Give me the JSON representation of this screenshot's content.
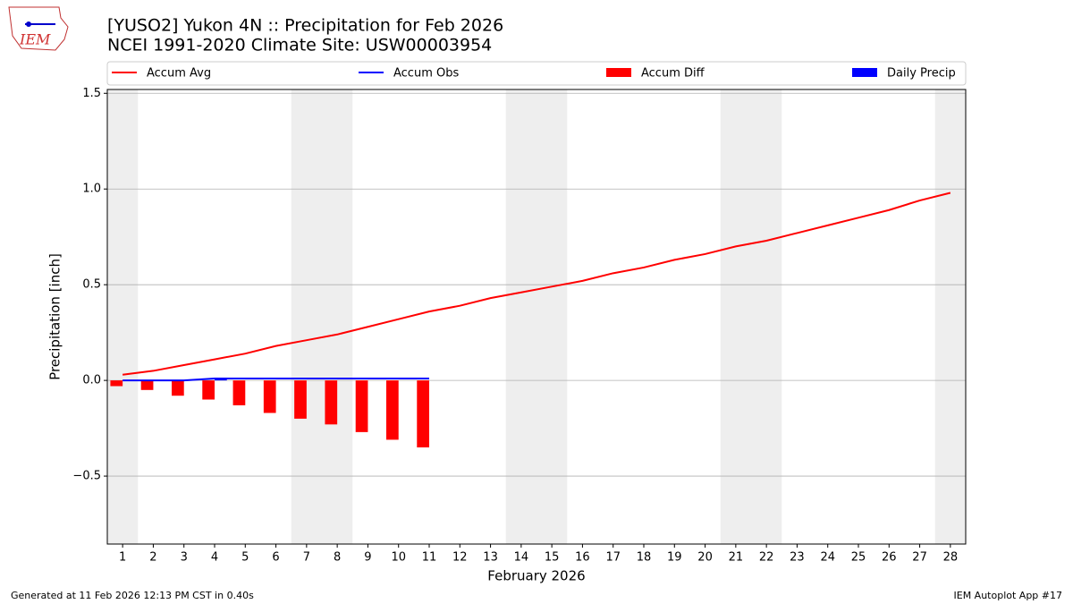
{
  "logo": "IEM",
  "footer": {
    "left": "Generated at 11 Feb 2026 12:13 PM CST in 0.40s",
    "right": "IEM Autoplot App #17"
  },
  "chart_data": {
    "type": "bar-line",
    "title": "[YUSO2] Yukon 4N :: Precipitation for Feb 2026",
    "subtitle": "NCEI 1991-2020 Climate Site: USW00003954",
    "x_label": "February 2026",
    "y_label": "Precipitation [inch]",
    "x": [
      1,
      2,
      3,
      4,
      5,
      6,
      7,
      8,
      9,
      10,
      11,
      12,
      13,
      14,
      15,
      16,
      17,
      18,
      19,
      20,
      21,
      22,
      23,
      24,
      25,
      26,
      27,
      28
    ],
    "series": [
      {
        "name": "Accum Avg",
        "kind": "line",
        "color": "#ff0000",
        "values": [
          0.03,
          0.05,
          0.08,
          0.11,
          0.14,
          0.18,
          0.21,
          0.24,
          0.28,
          0.32,
          0.36,
          0.39,
          0.43,
          0.46,
          0.49,
          0.52,
          0.56,
          0.59,
          0.63,
          0.66,
          0.7,
          0.73,
          0.77,
          0.81,
          0.85,
          0.89,
          0.94,
          0.98
        ]
      },
      {
        "name": "Accum Obs",
        "kind": "line",
        "color": "#0000ff",
        "values": [
          0,
          0,
          0,
          0.01,
          0.01,
          0.01,
          0.01,
          0.01,
          0.01,
          0.01,
          0.01,
          null,
          null,
          null,
          null,
          null,
          null,
          null,
          null,
          null,
          null,
          null,
          null,
          null,
          null,
          null,
          null,
          null
        ]
      },
      {
        "name": "Accum Diff",
        "kind": "bar",
        "color": "#ff0000",
        "values": [
          -0.03,
          -0.05,
          -0.08,
          -0.1,
          -0.13,
          -0.17,
          -0.2,
          -0.23,
          -0.27,
          -0.31,
          -0.35,
          null,
          null,
          null,
          null,
          null,
          null,
          null,
          null,
          null,
          null,
          null,
          null,
          null,
          null,
          null,
          null,
          null
        ]
      },
      {
        "name": "Daily Precip",
        "kind": "bar",
        "color": "#0000ff",
        "values": [
          0,
          0,
          0,
          0.01,
          0,
          0,
          0,
          0,
          0,
          0,
          0,
          null,
          null,
          null,
          null,
          null,
          null,
          null,
          null,
          null,
          null,
          null,
          null,
          null,
          null,
          null,
          null,
          null
        ]
      }
    ],
    "shaded_days": [
      1,
      7,
      8,
      14,
      15,
      21,
      22,
      28
    ],
    "shade_color": "#eeeeee",
    "xlim": [
      0.5,
      28.5
    ],
    "ylim": [
      -0.855,
      1.52
    ],
    "xticks": [
      1,
      2,
      3,
      4,
      5,
      6,
      7,
      8,
      9,
      10,
      11,
      12,
      13,
      14,
      15,
      16,
      17,
      18,
      19,
      20,
      21,
      22,
      23,
      24,
      25,
      26,
      27,
      28
    ],
    "yticks": [
      {
        "value": -0.5,
        "label": "−0.5"
      },
      {
        "value": 0,
        "label": "0.0"
      },
      {
        "value": 0.5,
        "label": "0.5"
      },
      {
        "value": 1,
        "label": "1.0"
      },
      {
        "value": 1.5,
        "label": "1.5"
      }
    ],
    "grid": true
  }
}
